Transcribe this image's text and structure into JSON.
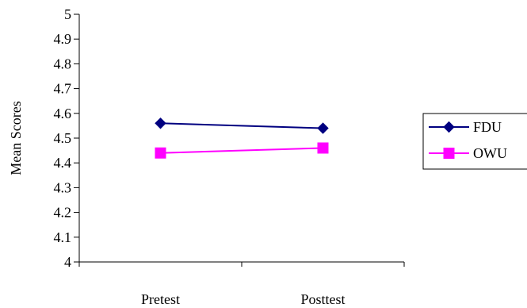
{
  "chart_data": {
    "type": "line",
    "title": "",
    "xlabel": "",
    "ylabel": "Mean Scores",
    "categories": [
      "Pretest",
      "Posttest"
    ],
    "ylim": [
      4,
      5
    ],
    "yticks": [
      "4",
      "4.1",
      "4.2",
      "4.3",
      "4.4",
      "4.5",
      "4.6",
      "4.7",
      "4.8",
      "4.9",
      "5"
    ],
    "grid": false,
    "legend_position": "right",
    "series": [
      {
        "name": "FDU",
        "values": [
          4.56,
          4.54
        ],
        "color": "#000080",
        "marker": "diamond"
      },
      {
        "name": "OWU",
        "values": [
          4.44,
          4.46
        ],
        "color": "#ff00ff",
        "marker": "square"
      }
    ]
  }
}
